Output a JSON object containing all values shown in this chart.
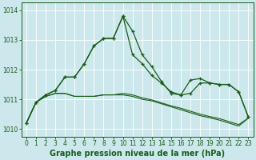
{
  "title": "Graphe pression niveau de la mer (hPa)",
  "bg_color": "#cce8ec",
  "grid_color": "#ffffff",
  "line_color": "#1a5c1a",
  "xlim": [
    -0.5,
    23.5
  ],
  "ylim": [
    1009.75,
    1014.25
  ],
  "yticks": [
    1010,
    1011,
    1012,
    1013,
    1014
  ],
  "xticks": [
    0,
    1,
    2,
    3,
    4,
    5,
    6,
    7,
    8,
    9,
    10,
    11,
    12,
    13,
    14,
    15,
    16,
    17,
    18,
    19,
    20,
    21,
    22,
    23
  ],
  "title_fontsize": 7,
  "tick_fontsize": 5.5,
  "series_marked_1": [
    1010.2,
    1010.9,
    1011.15,
    1011.3,
    1011.75,
    1011.75,
    1012.2,
    1012.8,
    1013.05,
    1013.05,
    1013.8,
    1013.3,
    1012.5,
    1012.1,
    1011.6,
    1011.2,
    1011.15,
    1011.2,
    1011.55,
    1011.55,
    1011.5,
    1011.5,
    1011.25,
    1010.4
  ],
  "series_marked_2": [
    1010.2,
    1010.9,
    1011.15,
    1011.3,
    1011.75,
    1011.75,
    1012.2,
    1012.8,
    1013.05,
    1013.05,
    1013.8,
    1012.5,
    1012.2,
    1011.8,
    1011.55,
    1011.25,
    1011.15,
    1011.65,
    1011.7,
    1011.55,
    1011.5,
    1011.5,
    1011.25,
    1010.4
  ],
  "series_flat_1": [
    1010.2,
    1010.9,
    1011.1,
    1011.2,
    1011.2,
    1011.1,
    1011.1,
    1011.1,
    1011.15,
    1011.15,
    1011.15,
    1011.1,
    1011.0,
    1010.95,
    1010.85,
    1010.75,
    1010.65,
    1010.55,
    1010.45,
    1010.38,
    1010.3,
    1010.2,
    1010.1,
    1010.37
  ],
  "series_flat_2": [
    1010.2,
    1010.9,
    1011.1,
    1011.2,
    1011.2,
    1011.1,
    1011.1,
    1011.1,
    1011.15,
    1011.15,
    1011.2,
    1011.15,
    1011.05,
    1010.98,
    1010.88,
    1010.78,
    1010.7,
    1010.6,
    1010.5,
    1010.42,
    1010.35,
    1010.25,
    1010.15,
    1010.37
  ]
}
